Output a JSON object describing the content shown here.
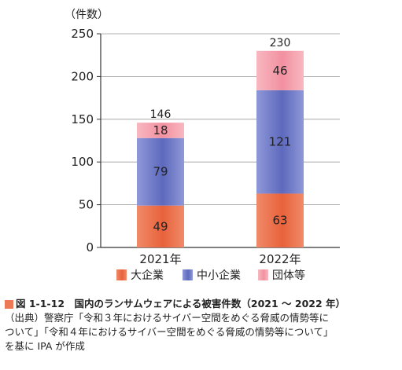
{
  "chart_data": {
    "type": "bar",
    "stacked": true,
    "ylabel": "（件数）",
    "ylim": [
      0,
      250
    ],
    "yticks": [
      "0",
      "50",
      "100",
      "150",
      "200",
      "250"
    ],
    "categories": [
      "2021年",
      "2022年"
    ],
    "series": [
      {
        "name": "大企業",
        "values": [
          49,
          63
        ],
        "color": "#f08a68",
        "color_dark": "#e8623c"
      },
      {
        "name": "中小企業",
        "values": [
          79,
          121
        ],
        "color": "#8f98d8",
        "color_dark": "#5d69bd"
      },
      {
        "name": "団体等",
        "values": [
          18,
          46
        ],
        "color": "#f8b8c0",
        "color_dark": "#f290a0"
      }
    ],
    "totals": [
      "146",
      "230"
    ],
    "segment_labels": [
      [
        "49",
        "79",
        "18"
      ],
      [
        "63",
        "121",
        "46"
      ]
    ],
    "grid": true,
    "legend_position": "bottom"
  },
  "caption": {
    "title": "図 1-1-12　国内のランサムウェアによる被害件数（2021 ～ 2022 年）",
    "source_line1": "（出典）警察庁「令和３年におけるサイバー空間をめぐる脅威の情勢等に",
    "source_line2": "ついて」「令和４年におけるサイバー空間をめぐる脅威の情勢等について」",
    "source_line3": "を基に IPA が作成"
  }
}
